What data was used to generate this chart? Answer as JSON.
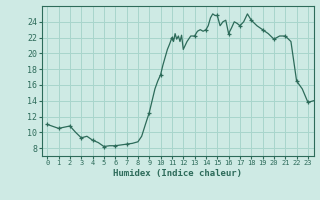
{
  "line_color": "#2d6b5a",
  "marker_color": "#2d6b5a",
  "bg_color": "#ceeae4",
  "grid_color": "#a8d5cc",
  "axis_color": "#2d6b5a",
  "xlabel": "Humidex (Indice chaleur)",
  "xlim": [
    -0.5,
    23.5
  ],
  "ylim": [
    7,
    26
  ],
  "yticks": [
    8,
    10,
    12,
    14,
    16,
    18,
    20,
    22,
    24
  ],
  "xticks": [
    0,
    1,
    2,
    3,
    4,
    5,
    6,
    7,
    8,
    9,
    10,
    11,
    12,
    13,
    14,
    15,
    16,
    17,
    18,
    19,
    20,
    21,
    22,
    23
  ],
  "x_dense": [
    0.0,
    1.0,
    2.0,
    2.5,
    3.0,
    3.5,
    4.0,
    4.5,
    5.0,
    5.5,
    6.0,
    6.5,
    7.0,
    7.5,
    8.0,
    8.33,
    8.66,
    9.0,
    9.25,
    9.5,
    9.75,
    10.0,
    10.2,
    10.4,
    10.6,
    10.8,
    11.0,
    11.14,
    11.28,
    11.42,
    11.57,
    11.71,
    11.85,
    12.0,
    12.33,
    12.66,
    13.0,
    13.25,
    13.5,
    13.75,
    14.0,
    14.2,
    14.4,
    14.6,
    14.8,
    15.0,
    15.25,
    15.5,
    15.75,
    16.0,
    16.25,
    16.5,
    16.75,
    17.0,
    17.33,
    17.66,
    18.0,
    18.5,
    19.0,
    19.5,
    20.0,
    20.5,
    21.0,
    21.5,
    22.0,
    22.5,
    23.0,
    23.5
  ],
  "y_dense": [
    11.0,
    10.5,
    10.8,
    10.0,
    9.3,
    9.5,
    9.0,
    8.7,
    8.2,
    8.3,
    8.3,
    8.4,
    8.5,
    8.6,
    8.8,
    9.5,
    11.0,
    12.5,
    14.0,
    15.5,
    16.5,
    17.3,
    18.5,
    19.5,
    20.5,
    21.2,
    22.0,
    21.5,
    22.5,
    21.8,
    22.2,
    21.5,
    22.3,
    20.5,
    21.5,
    22.2,
    22.2,
    22.8,
    23.0,
    22.8,
    23.0,
    23.5,
    24.5,
    25.0,
    24.8,
    24.8,
    23.5,
    24.0,
    24.2,
    22.5,
    23.2,
    24.0,
    23.8,
    23.5,
    24.0,
    25.0,
    24.2,
    23.5,
    23.0,
    22.5,
    21.8,
    22.2,
    22.2,
    21.5,
    16.5,
    15.5,
    13.8,
    14.0
  ],
  "markers_x": [
    0,
    1,
    2,
    3,
    4,
    5,
    6,
    7,
    9,
    10,
    11,
    13,
    14,
    15,
    16,
    17,
    18,
    19,
    20,
    21,
    22,
    23
  ],
  "markers_y": [
    11.0,
    10.5,
    10.8,
    9.3,
    9.0,
    8.2,
    8.3,
    8.5,
    12.5,
    17.3,
    22.0,
    22.2,
    23.0,
    24.8,
    22.5,
    23.5,
    24.2,
    23.0,
    21.8,
    22.2,
    16.5,
    13.8
  ]
}
